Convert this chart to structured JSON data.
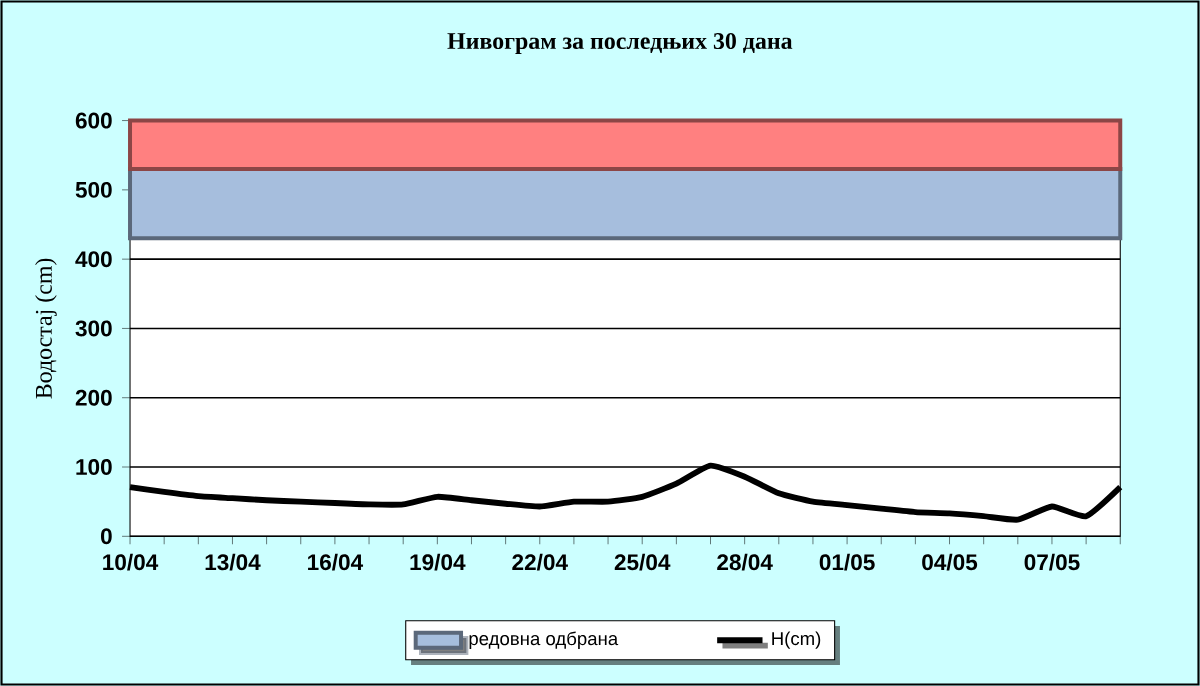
{
  "chart_data": {
    "type": "line",
    "title": "Нивограм за последњих 30 дана",
    "ylabel": "Водостај (cm)",
    "categories": [
      "10/04",
      null,
      null,
      "13/04",
      null,
      null,
      "16/04",
      null,
      null,
      "19/04",
      null,
      null,
      "22/04",
      null,
      null,
      "25/04",
      null,
      null,
      "28/04",
      null,
      null,
      "01/05",
      null,
      null,
      "04/05",
      null,
      null,
      "07/05",
      null,
      null
    ],
    "series": [
      {
        "name": "H(cm)",
        "color": "#000000",
        "values": [
          71,
          64,
          58,
          55,
          52,
          50,
          48,
          46,
          46,
          57,
          52,
          47,
          43,
          50,
          50,
          57,
          76,
          102,
          86,
          62,
          50,
          45,
          40,
          35,
          33,
          29,
          24,
          43,
          29,
          71
        ]
      }
    ],
    "ylim": [
      0,
      600
    ],
    "yticks": [
      0,
      100,
      200,
      300,
      400,
      500,
      600
    ],
    "grid": "y",
    "legend": "bottom",
    "marker": "none",
    "bands": [
      {
        "axis": "y",
        "from": 430,
        "to": 530,
        "label": "редовна одбрана",
        "color": "#a6bedd"
      },
      {
        "axis": "y",
        "from": 530,
        "to": 600,
        "color": "#ff8080"
      }
    ]
  }
}
